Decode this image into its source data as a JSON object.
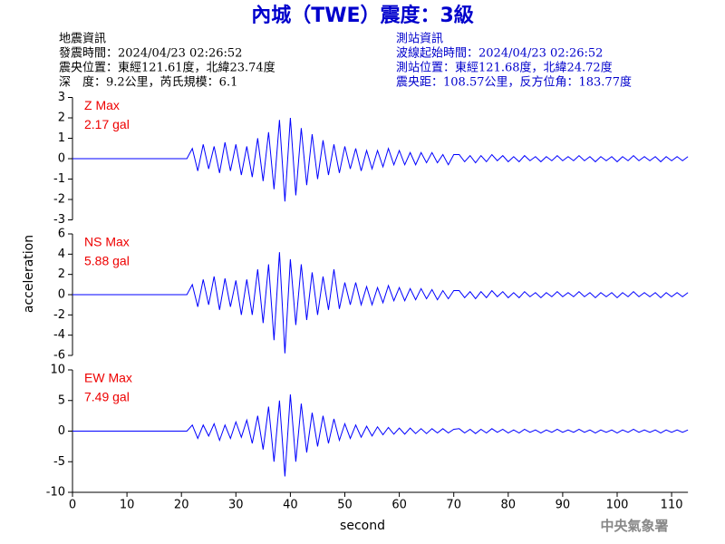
{
  "title": "內城（TWE）震度：3級",
  "info_left": [
    "地震資訊",
    "發震時間：2024/04/23 02:26:52",
    "震央位置：東經121.61度，北緯23.74度",
    "深　度：9.2公里，芮氏規模：6.1"
  ],
  "info_right": [
    "測站資訊",
    "波線起始時間：2024/04/23 02:26:52",
    "測站位置：東經121.68度，北緯24.72度",
    "震央距：108.57公里，反方位角：183.77度"
  ],
  "ylabel": "acceleration",
  "footer": "中央氣象署",
  "chart_data": [
    {
      "type": "line",
      "annotation": [
        "Z Max",
        "2.17 gal"
      ],
      "color": "#0000ff",
      "xlim": [
        0,
        113
      ],
      "ylim": [
        -3,
        3
      ],
      "yticks": [
        -3,
        -2,
        -1,
        0,
        1,
        2,
        3
      ],
      "x": [
        0,
        21,
        22,
        23,
        24,
        25,
        26,
        27,
        28,
        29,
        30,
        31,
        32,
        33,
        34,
        35,
        36,
        37,
        38,
        39,
        40,
        41,
        42,
        43,
        44,
        45,
        46,
        47,
        48,
        49,
        50,
        51,
        52,
        53,
        54,
        55,
        56,
        57,
        58,
        59,
        60,
        61,
        62,
        63,
        64,
        65,
        66,
        67,
        68,
        69,
        70,
        71,
        72,
        73,
        74,
        75,
        76,
        77,
        78,
        79,
        80,
        81,
        82,
        83,
        84,
        85,
        86,
        87,
        88,
        89,
        90,
        91,
        92,
        93,
        94,
        95,
        96,
        97,
        98,
        99,
        100,
        101,
        102,
        103,
        104,
        105,
        106,
        107,
        108,
        109,
        110,
        111,
        112,
        113
      ],
      "values": [
        0,
        0,
        0.5,
        -0.6,
        0.7,
        -0.5,
        0.6,
        -0.7,
        0.8,
        -0.6,
        0.7,
        -0.8,
        0.6,
        -0.9,
        1.0,
        -1.1,
        1.3,
        -1.5,
        1.9,
        -2.1,
        2.0,
        -1.8,
        1.5,
        -1.3,
        1.2,
        -1.0,
        0.9,
        -0.8,
        0.7,
        -0.7,
        0.6,
        -0.5,
        0.5,
        -0.6,
        0.4,
        -0.5,
        0.4,
        -0.4,
        0.5,
        -0.3,
        0.4,
        -0.3,
        0.3,
        -0.3,
        0.3,
        -0.2,
        0.3,
        -0.2,
        0.2,
        -0.3,
        0.2,
        0.2,
        -0.15,
        0.15,
        -0.2,
        0.15,
        -0.15,
        0.2,
        -0.1,
        0.15,
        -0.15,
        0.1,
        -0.15,
        0.15,
        -0.1,
        0.1,
        -0.15,
        0.1,
        -0.1,
        0.15,
        -0.1,
        0.1,
        -0.1,
        0.15,
        -0.1,
        0.1,
        -0.15,
        0.1,
        -0.1,
        0.1,
        -0.15,
        0.1,
        -0.1,
        0.15,
        -0.1,
        0.1,
        -0.1,
        0.1,
        -0.15,
        0.1,
        -0.1,
        0.1,
        -0.1,
        0.1
      ]
    },
    {
      "type": "line",
      "annotation": [
        "NS Max",
        "5.88 gal"
      ],
      "color": "#0000ff",
      "xlim": [
        0,
        113
      ],
      "ylim": [
        -6,
        6
      ],
      "yticks": [
        -6,
        -4,
        -2,
        0,
        2,
        4,
        6
      ],
      "x": [
        0,
        21,
        22,
        23,
        24,
        25,
        26,
        27,
        28,
        29,
        30,
        31,
        32,
        33,
        34,
        35,
        36,
        37,
        38,
        39,
        40,
        41,
        42,
        43,
        44,
        45,
        46,
        47,
        48,
        49,
        50,
        51,
        52,
        53,
        54,
        55,
        56,
        57,
        58,
        59,
        60,
        61,
        62,
        63,
        64,
        65,
        66,
        67,
        68,
        69,
        70,
        71,
        72,
        73,
        74,
        75,
        76,
        77,
        78,
        79,
        80,
        81,
        82,
        83,
        84,
        85,
        86,
        87,
        88,
        89,
        90,
        91,
        92,
        93,
        94,
        95,
        96,
        97,
        98,
        99,
        100,
        101,
        102,
        103,
        104,
        105,
        106,
        107,
        108,
        109,
        110,
        111,
        112,
        113
      ],
      "values": [
        0,
        0,
        1.0,
        -1.2,
        1.5,
        -1.0,
        1.8,
        -1.5,
        1.6,
        -1.2,
        1.4,
        -2.0,
        1.5,
        -2.0,
        2.5,
        -2.8,
        3.0,
        -4.5,
        4.2,
        -5.8,
        3.5,
        -3.0,
        3.0,
        -2.5,
        2.2,
        -2.0,
        1.8,
        -1.5,
        2.5,
        -1.4,
        1.2,
        -1.0,
        1.2,
        -1.0,
        0.8,
        -1.0,
        0.7,
        -0.8,
        0.9,
        -0.6,
        0.7,
        -0.6,
        0.6,
        -0.5,
        0.6,
        -0.4,
        0.5,
        -0.5,
        0.4,
        -0.4,
        0.4,
        0.4,
        -0.3,
        0.3,
        -0.4,
        0.3,
        -0.3,
        0.4,
        -0.2,
        0.3,
        -0.3,
        0.2,
        -0.3,
        0.3,
        -0.2,
        0.2,
        -0.3,
        0.2,
        -0.2,
        0.3,
        -0.2,
        0.2,
        -0.2,
        0.3,
        -0.2,
        0.2,
        -0.3,
        0.2,
        -0.2,
        0.2,
        -0.3,
        0.2,
        -0.2,
        0.3,
        -0.2,
        0.2,
        -0.2,
        0.2,
        -0.3,
        0.2,
        -0.2,
        0.2,
        -0.2,
        0.2
      ]
    },
    {
      "type": "line",
      "annotation": [
        "EW Max",
        "7.49 gal"
      ],
      "color": "#0000ff",
      "xlim": [
        0,
        113
      ],
      "ylim": [
        -10,
        10
      ],
      "yticks": [
        -10,
        -5,
        0,
        5,
        10
      ],
      "xticks": [
        0,
        10,
        20,
        30,
        40,
        50,
        60,
        70,
        80,
        90,
        100,
        110
      ],
      "xlabel": "second",
      "x": [
        0,
        21,
        22,
        23,
        24,
        25,
        26,
        27,
        28,
        29,
        30,
        31,
        32,
        33,
        34,
        35,
        36,
        37,
        38,
        39,
        40,
        41,
        42,
        43,
        44,
        45,
        46,
        47,
        48,
        49,
        50,
        51,
        52,
        53,
        54,
        55,
        56,
        57,
        58,
        59,
        60,
        61,
        62,
        63,
        64,
        65,
        66,
        67,
        68,
        69,
        70,
        71,
        72,
        73,
        74,
        75,
        76,
        77,
        78,
        79,
        80,
        81,
        82,
        83,
        84,
        85,
        86,
        87,
        88,
        89,
        90,
        91,
        92,
        93,
        94,
        95,
        96,
        97,
        98,
        99,
        100,
        101,
        102,
        103,
        104,
        105,
        106,
        107,
        108,
        109,
        110,
        111,
        112,
        113
      ],
      "values": [
        0,
        0,
        1.0,
        -1.2,
        1.0,
        -0.8,
        1.2,
        -1.5,
        1.0,
        -1.2,
        1.5,
        -1.0,
        1.8,
        -2.0,
        2.5,
        -3.0,
        4.0,
        -5.0,
        5.0,
        -7.4,
        6.0,
        -5.0,
        4.5,
        -3.5,
        3.0,
        -2.5,
        2.5,
        -2.0,
        2.0,
        -1.5,
        1.2,
        -1.2,
        1.0,
        -1.0,
        0.8,
        -0.8,
        0.7,
        -0.6,
        0.6,
        -0.5,
        0.5,
        -0.5,
        0.5,
        -0.4,
        0.4,
        -0.4,
        0.4,
        -0.3,
        0.4,
        -0.3,
        0.3,
        0.4,
        -0.3,
        0.3,
        -0.4,
        0.3,
        -0.3,
        0.4,
        -0.2,
        0.3,
        -0.3,
        0.2,
        -0.3,
        0.3,
        -0.2,
        0.2,
        -0.3,
        0.2,
        -0.2,
        0.3,
        -0.2,
        0.2,
        -0.2,
        0.3,
        -0.2,
        0.2,
        -0.3,
        0.2,
        -0.2,
        0.2,
        -0.3,
        0.2,
        -0.2,
        0.3,
        -0.2,
        0.2,
        -0.2,
        0.2,
        -0.3,
        0.2,
        -0.2,
        0.2,
        -0.2,
        0.2
      ]
    }
  ]
}
